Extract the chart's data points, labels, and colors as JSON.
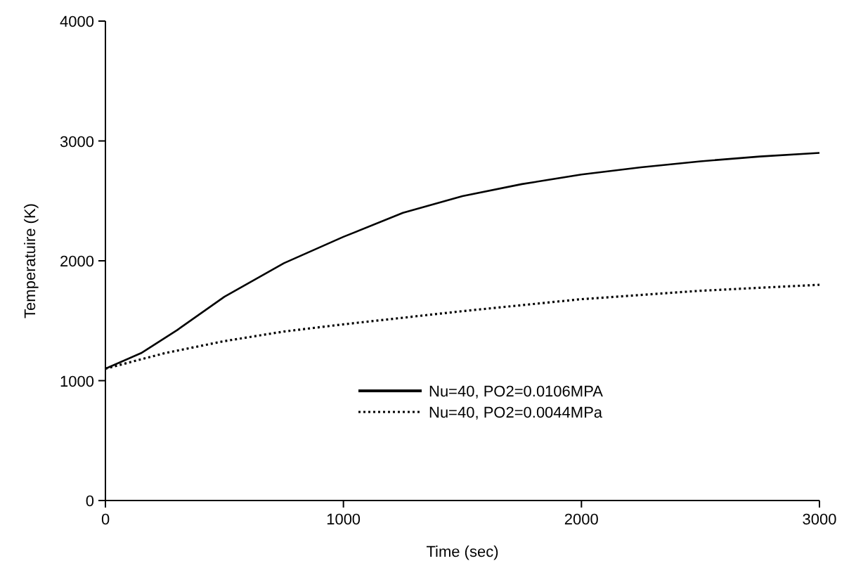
{
  "chart_data": {
    "type": "line",
    "xlabel": "Time (sec)",
    "ylabel": "Temperatuire (K)",
    "xlim": [
      0,
      3000
    ],
    "xticks": [
      0,
      1000,
      2000,
      3000
    ],
    "ylim": [
      0,
      4000
    ],
    "yticks": [
      0,
      1000,
      2000,
      3000,
      4000
    ],
    "legend": "bottom",
    "grid": false,
    "series": [
      {
        "name": "Nu=40, PO2=0.0106MPA",
        "color": "#000000",
        "line_style": "solid",
        "x": [
          0,
          150,
          300,
          500,
          750,
          1000,
          1250,
          1500,
          1750,
          2000,
          2250,
          2500,
          2750,
          3000
        ],
        "values": [
          1100,
          1230,
          1420,
          1700,
          1980,
          2200,
          2400,
          2540,
          2640,
          2720,
          2780,
          2830,
          2870,
          2900
        ]
      },
      {
        "name": "Nu=40, PO2=0.0044MPa",
        "color": "#000000",
        "line_style": "dotted",
        "x": [
          0,
          250,
          500,
          750,
          1000,
          1500,
          2000,
          2500,
          3000
        ],
        "values": [
          1100,
          1230,
          1330,
          1410,
          1470,
          1580,
          1680,
          1750,
          1800
        ]
      }
    ]
  }
}
